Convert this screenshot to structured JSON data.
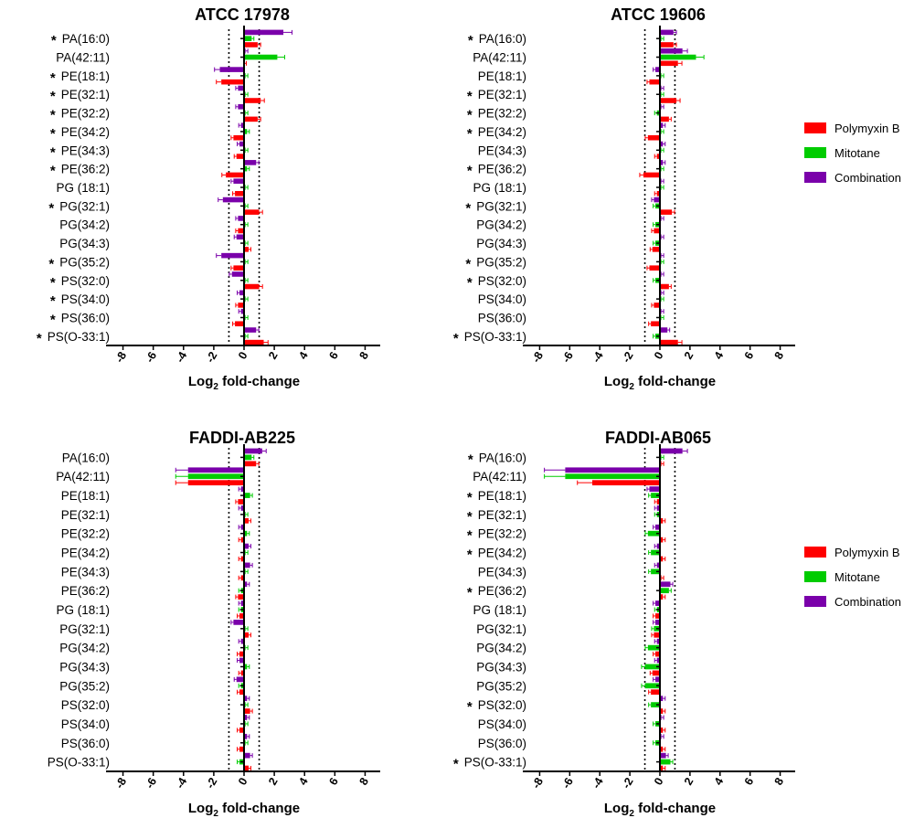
{
  "colors": {
    "polymyxin": "#ff0000",
    "mitotane": "#00cc00",
    "combination": "#7a00aa"
  },
  "legend": [
    {
      "name": "Polymyxin B",
      "color": "#ff0000"
    },
    {
      "name": "Mitotane",
      "color": "#00cc00"
    },
    {
      "name": "Combination",
      "color": "#7a00aa"
    }
  ],
  "chart_data": [
    {
      "type": "bar",
      "orientation": "horizontal",
      "title": "ATCC 17978",
      "xlabel": "Log2 fold-change",
      "xlim": [
        -9,
        9
      ],
      "xticks": [
        -8,
        -6,
        -4,
        -2,
        0,
        2,
        4,
        6,
        8
      ],
      "reference_lines": [
        -1,
        1
      ],
      "categories": [
        "PA(16:0)",
        "PA(42:11)",
        "PE(18:1)",
        "PE(32:1)",
        "PE(32:2)",
        "PE(34:2)",
        "PE(34:3)",
        "PE(36:2)",
        "PG (18:1)",
        "PG(32:1)",
        "PG(34:2)",
        "PG(34:3)",
        "PG(35:2)",
        "PS(32:0)",
        "PS(34:0)",
        "PS(36:0)",
        "PS(O-33:1)"
      ],
      "significant": [
        true,
        false,
        true,
        true,
        true,
        true,
        true,
        true,
        false,
        true,
        false,
        false,
        true,
        true,
        true,
        true,
        true
      ],
      "series": [
        {
          "name": "Combination",
          "values": [
            2.6,
            0.1,
            -1.6,
            -0.4,
            -0.4,
            -0.2,
            -0.3,
            0.8,
            -0.7,
            -1.4,
            -0.4,
            -0.5,
            -1.5,
            -0.8,
            -0.3,
            -0.2,
            0.8
          ]
        },
        {
          "name": "Mitotane",
          "values": [
            0.5,
            2.2,
            0.1,
            0.1,
            0.1,
            0.2,
            0.1,
            0.2,
            0.1,
            0.1,
            0.1,
            0.1,
            0.1,
            0.1,
            0.1,
            0.1,
            0.1
          ]
        },
        {
          "name": "Polymyxin B",
          "values": [
            0.9,
            0.0,
            -1.5,
            1.1,
            0.9,
            -0.7,
            -0.5,
            -1.2,
            -0.6,
            1.0,
            -0.4,
            0.3,
            -0.7,
            1.0,
            -0.4,
            -0.6,
            1.3
          ]
        }
      ]
    },
    {
      "type": "bar",
      "orientation": "horizontal",
      "title": "ATCC 19606",
      "xlabel": "Log2 fold-change",
      "xlim": [
        -9,
        9
      ],
      "xticks": [
        -8,
        -6,
        -4,
        -2,
        0,
        2,
        4,
        6,
        8
      ],
      "reference_lines": [
        -1,
        1
      ],
      "categories": [
        "PA(16:0)",
        "PA(42:11)",
        "PE(18:1)",
        "PE(32:1)",
        "PE(32:2)",
        "PE(34:2)",
        "PE(34:3)",
        "PE(36:2)",
        "PG (18:1)",
        "PG(32:1)",
        "PG(34:2)",
        "PG(34:3)",
        "PG(35:2)",
        "PS(32:0)",
        "PS(34:0)",
        "PS(36:0)",
        "PS(O-33:1)"
      ],
      "significant": [
        true,
        false,
        false,
        true,
        true,
        true,
        false,
        true,
        false,
        true,
        false,
        false,
        true,
        true,
        false,
        false,
        true
      ],
      "series": [
        {
          "name": "Combination",
          "values": [
            0.9,
            1.5,
            -0.3,
            0.1,
            0.1,
            0.2,
            0.2,
            0.2,
            0.1,
            -0.4,
            0.1,
            0.1,
            0.1,
            0.1,
            0.1,
            0.1,
            0.5
          ]
        },
        {
          "name": "Mitotane",
          "values": [
            0.1,
            2.4,
            0.1,
            0.1,
            -0.2,
            0.1,
            0.1,
            0.1,
            0.1,
            -0.3,
            -0.3,
            -0.3,
            0.1,
            -0.3,
            0.1,
            0.1,
            -0.3
          ]
        },
        {
          "name": "Polymyxin B",
          "values": [
            0.9,
            1.2,
            -0.7,
            1.1,
            0.6,
            -0.8,
            -0.2,
            -1.1,
            -0.2,
            0.8,
            -0.4,
            -0.5,
            -0.7,
            0.6,
            -0.4,
            -0.6,
            1.2
          ]
        }
      ]
    },
    {
      "type": "bar",
      "orientation": "horizontal",
      "title": "FADDI-AB225",
      "xlabel": "Log2 fold-change",
      "xlim": [
        -9,
        9
      ],
      "xticks": [
        -8,
        -6,
        -4,
        -2,
        0,
        2,
        4,
        6,
        8
      ],
      "reference_lines": [
        -1,
        1
      ],
      "categories": [
        "PA(16:0)",
        "PA(42:11)",
        "PE(18:1)",
        "PE(32:1)",
        "PE(32:2)",
        "PE(34:2)",
        "PE(34:3)",
        "PE(36:2)",
        "PG (18:1)",
        "PG(32:1)",
        "PG(34:2)",
        "PG(34:3)",
        "PG(35:2)",
        "PS(32:0)",
        "PS(34:0)",
        "PS(36:0)",
        "PS(O-33:1)"
      ],
      "significant": [
        false,
        false,
        false,
        false,
        false,
        false,
        false,
        false,
        false,
        false,
        false,
        false,
        false,
        false,
        false,
        false,
        false
      ],
      "series": [
        {
          "name": "Combination",
          "values": [
            1.2,
            -3.7,
            -0.2,
            -0.2,
            -0.2,
            0.3,
            0.4,
            0.2,
            -0.2,
            -0.7,
            -0.2,
            -0.3,
            -0.5,
            0.2,
            0.2,
            0.2,
            0.4
          ]
        },
        {
          "name": "Mitotane",
          "values": [
            0.5,
            -3.7,
            0.4,
            0.1,
            0.2,
            0.1,
            0.1,
            -0.2,
            -0.2,
            0.1,
            0.1,
            0.2,
            -0.2,
            0.1,
            0.1,
            0.1,
            -0.3
          ]
        },
        {
          "name": "Polymyxin B",
          "values": [
            0.8,
            -3.7,
            -0.4,
            0.3,
            -0.2,
            -0.2,
            -0.2,
            -0.4,
            -0.3,
            0.3,
            -0.3,
            -0.2,
            -0.3,
            0.4,
            -0.3,
            -0.3,
            0.3
          ]
        }
      ]
    },
    {
      "type": "bar",
      "orientation": "horizontal",
      "title": "FADDI-AB065",
      "xlabel": "Log2 fold-change",
      "xlim": [
        -9,
        9
      ],
      "xticks": [
        -8,
        -6,
        -4,
        -2,
        0,
        2,
        4,
        6,
        8
      ],
      "reference_lines": [
        -1,
        1
      ],
      "categories": [
        "PA(16:0)",
        "PA(42:11)",
        "PE(18:1)",
        "PE(32:1)",
        "PE(32:2)",
        "PE(34:2)",
        "PE(34:3)",
        "PE(36:2)",
        "PG (18:1)",
        "PG(32:1)",
        "PG(34:2)",
        "PG(34:3)",
        "PG(35:2)",
        "PS(32:0)",
        "PS(34:0)",
        "PS(36:0)",
        "PS(O-33:1)"
      ],
      "significant": [
        true,
        false,
        true,
        true,
        true,
        true,
        false,
        true,
        false,
        false,
        false,
        false,
        false,
        true,
        false,
        false,
        true
      ],
      "series": [
        {
          "name": "Combination",
          "values": [
            1.5,
            -6.3,
            -0.7,
            -0.2,
            -0.3,
            -0.2,
            -0.2,
            0.7,
            -0.3,
            -0.3,
            -0.2,
            -0.2,
            -0.3,
            0.2,
            0.1,
            0.1,
            0.4
          ]
        },
        {
          "name": "Mitotane",
          "values": [
            0.1,
            -6.3,
            -0.6,
            -0.2,
            -0.8,
            -0.6,
            -0.6,
            0.6,
            -0.2,
            -0.4,
            -0.8,
            -1.0,
            -1.0,
            -0.6,
            -0.3,
            -0.3,
            0.7
          ]
        },
        {
          "name": "Polymyxin B",
          "values": [
            0.1,
            -4.5,
            -0.2,
            0.2,
            0.2,
            0.2,
            0.1,
            0.2,
            -0.3,
            -0.4,
            -0.3,
            -0.5,
            -0.6,
            0.2,
            0.2,
            0.2,
            0.2
          ]
        }
      ]
    }
  ]
}
